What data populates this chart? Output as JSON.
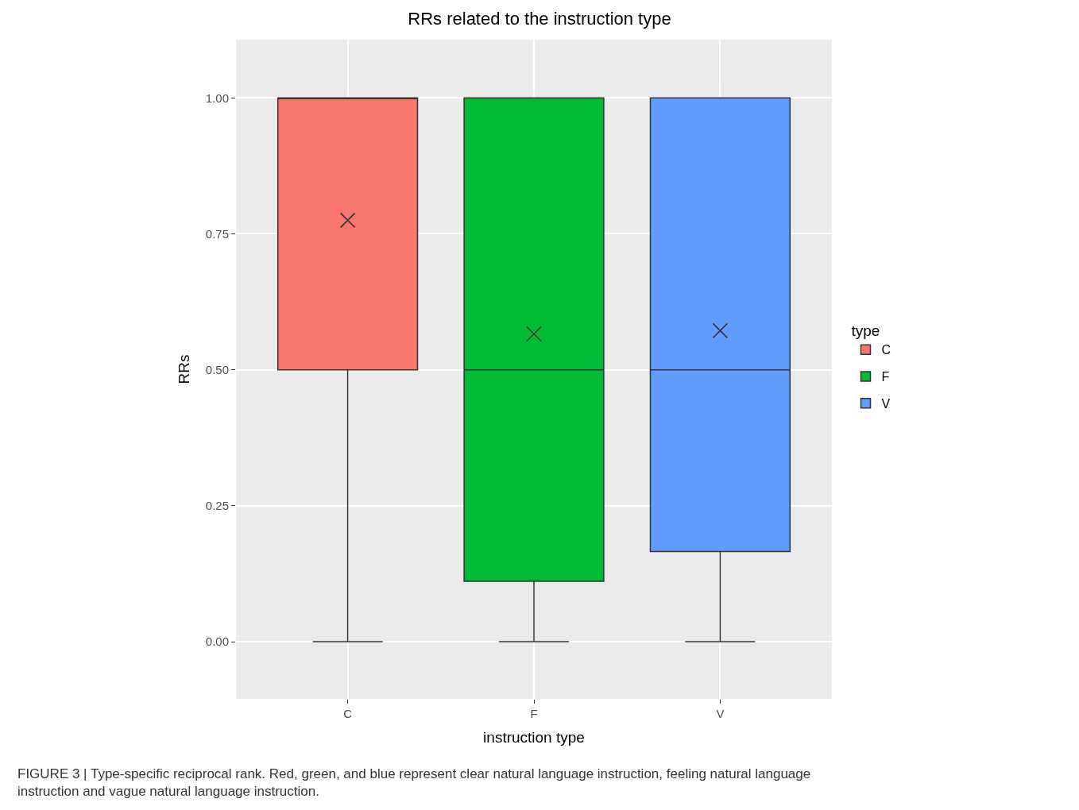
{
  "chart_data": {
    "type": "box",
    "title": "RRs related to the instruction type",
    "xlabel": "instruction type",
    "ylabel": "RRs",
    "legend_title": "type",
    "categories": [
      "C",
      "F",
      "V"
    ],
    "series": [
      {
        "name": "C",
        "color": "#f8766d",
        "boxes": [
          {
            "low": 0,
            "q1": 0.5,
            "median": 1.0,
            "q3": 1.0,
            "high": 1.0,
            "mean": 0.775
          },
          null,
          null
        ]
      },
      {
        "name": "F",
        "color": "#00ba38",
        "boxes": [
          null,
          {
            "low": 0,
            "q1": 0.111,
            "median": 0.5,
            "q3": 1.0,
            "high": 1.0,
            "mean": 0.566
          },
          null
        ]
      },
      {
        "name": "V",
        "color": "#619cff",
        "boxes": [
          null,
          null,
          {
            "low": 0,
            "q1": 0.166,
            "median": 0.5,
            "q3": 1.0,
            "high": 1.0,
            "mean": 0.572
          }
        ]
      }
    ],
    "ylim": [
      -0.105,
      1.107
    ],
    "yticks": [
      {
        "value": 0,
        "label": "0.00"
      },
      {
        "value": 0.25,
        "label": "0.25"
      },
      {
        "value": 0.5,
        "label": "0.50"
      },
      {
        "value": 0.75,
        "label": "0.75"
      },
      {
        "value": 1,
        "label": "1.00"
      }
    ],
    "grid": true,
    "legend": "right",
    "annotations": [
      "FIGURE 3 | Type-specific reciprocal rank. Red, green, and blue represent clear natural language instruction, feeling natural language instruction and vague natural language instruction."
    ]
  }
}
